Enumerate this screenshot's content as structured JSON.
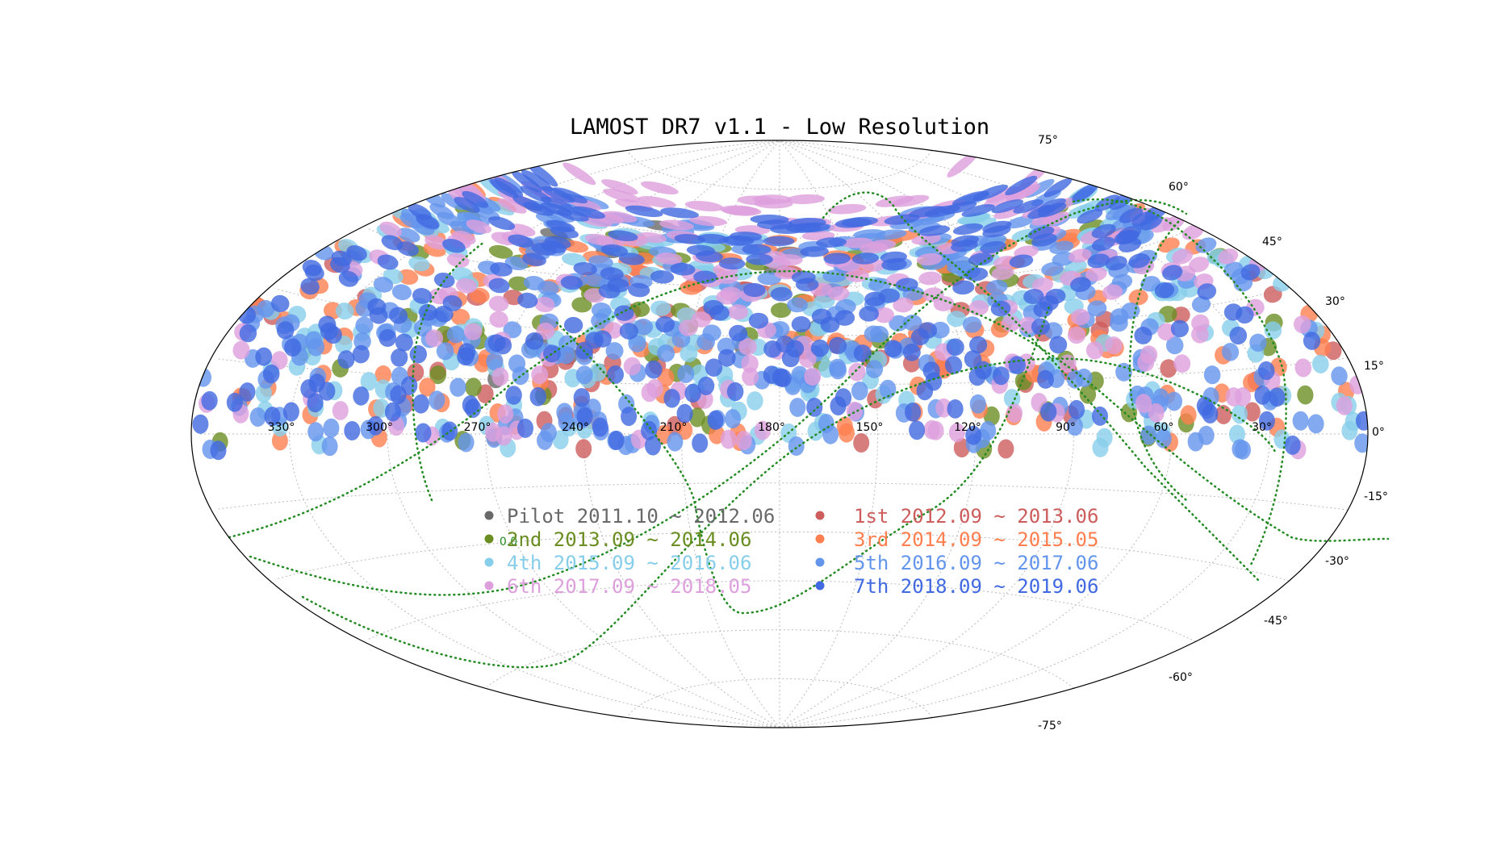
{
  "chart_data": {
    "type": "scatter",
    "projection": "aitoff",
    "title": "LAMOST DR7 v1.1 - Low Resolution",
    "grid": true,
    "ra_ticks": [
      {
        "label": "330°",
        "value": 330
      },
      {
        "label": "300°",
        "value": 300
      },
      {
        "label": "270°",
        "value": 270
      },
      {
        "label": "240°",
        "value": 240
      },
      {
        "label": "210°",
        "value": 210
      },
      {
        "label": "180°",
        "value": 180
      },
      {
        "label": "150°",
        "value": 150
      },
      {
        "label": "120°",
        "value": 120
      },
      {
        "label": "90°",
        "value": 90
      },
      {
        "label": "60°",
        "value": 60
      },
      {
        "label": "30°",
        "value": 30
      }
    ],
    "dec_ticks": [
      {
        "label": "75°",
        "value": 75
      },
      {
        "label": "60°",
        "value": 60
      },
      {
        "label": "45°",
        "value": 45
      },
      {
        "label": "30°",
        "value": 30
      },
      {
        "label": "15°",
        "value": 15
      },
      {
        "label": "0°",
        "value": 0
      },
      {
        "label": "-15°",
        "value": -15
      },
      {
        "label": "-30°",
        "value": -30
      },
      {
        "label": "-45°",
        "value": -45
      },
      {
        "label": "-60°",
        "value": -60
      },
      {
        "label": "-75°",
        "value": -75
      }
    ],
    "contour_label": "0.0",
    "legend_position": "lower-center",
    "series": [
      {
        "name": "Pilot 2011.10 ~ 2012.06",
        "color": "#696969",
        "dec_range": [
          0,
          62
        ],
        "ra_range": [
          150,
          300
        ],
        "count": 14
      },
      {
        "name": "1st 2012.09 ~ 2013.06",
        "color": "#cd5c5c",
        "dec_range": [
          -5,
          52
        ],
        "ra_range": [
          0,
          360
        ],
        "count": 70
      },
      {
        "name": "2nd 2013.09 ~ 2014.06",
        "color": "#6b8e23",
        "dec_range": [
          -5,
          58
        ],
        "ra_range": [
          0,
          360
        ],
        "count": 75
      },
      {
        "name": "3rd 2014.09 ~ 2015.05",
        "color": "#ff7f50",
        "dec_range": [
          -3,
          60
        ],
        "ra_range": [
          0,
          360
        ],
        "count": 150
      },
      {
        "name": "4th 2015.09 ~ 2016.06",
        "color": "#87ceeb",
        "dec_range": [
          -4,
          62
        ],
        "ra_range": [
          0,
          360
        ],
        "count": 220
      },
      {
        "name": "5th 2016.09 ~ 2017.06",
        "color": "#6495ed",
        "dec_range": [
          -4,
          65
        ],
        "ra_range": [
          0,
          360
        ],
        "count": 320
      },
      {
        "name": "6th 2017.09 ~ 2018.05",
        "color": "#dda0dd",
        "dec_range": [
          -4,
          72
        ],
        "ra_range": [
          0,
          360
        ],
        "count": 220
      },
      {
        "name": "7th 2018.09 ~ 2019.06",
        "color": "#4169e1",
        "dec_range": [
          -4,
          66
        ],
        "ra_range": [
          0,
          360
        ],
        "count": 280
      }
    ]
  }
}
